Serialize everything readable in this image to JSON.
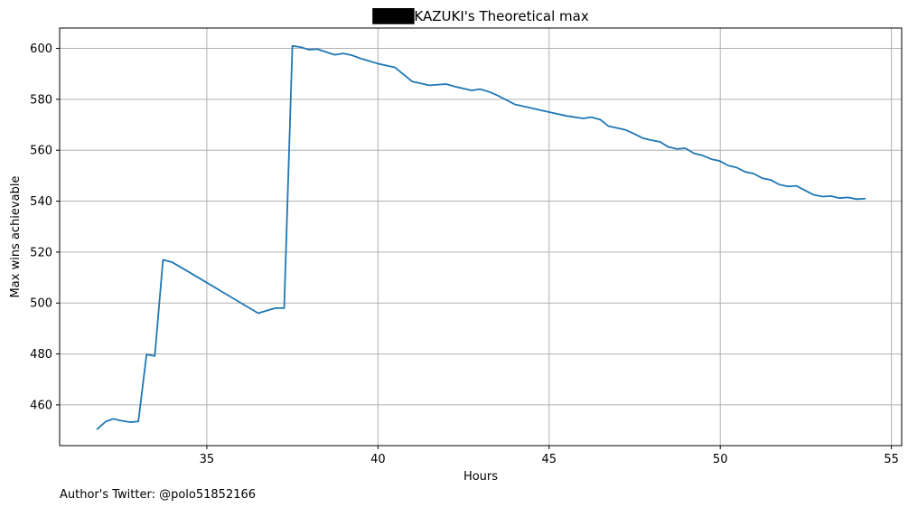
{
  "chart_data": {
    "type": "line",
    "title": "████KAZUKI's Theoretical max",
    "xlabel": "Hours",
    "ylabel": "Max wins achievable",
    "xlim": [
      30.7,
      55.3
    ],
    "ylim": [
      444,
      608
    ],
    "x_ticks": [
      35,
      40,
      45,
      50,
      55
    ],
    "y_ticks": [
      460,
      480,
      500,
      520,
      540,
      560,
      580,
      600
    ],
    "x_tick_labels": [
      "35",
      "40",
      "45",
      "50",
      "55"
    ],
    "y_tick_labels": [
      "460",
      "480",
      "500",
      "520",
      "540",
      "560",
      "580",
      "600"
    ],
    "grid": true,
    "series": [
      {
        "color": "#1f77b4",
        "x": [
          31.8,
          32.05,
          32.27,
          32.5,
          32.77,
          33.0,
          33.24,
          33.48,
          33.72,
          33.99,
          34.5,
          35.0,
          35.5,
          36.0,
          36.5,
          37.0,
          37.26,
          37.5,
          37.74,
          37.98,
          38.23,
          38.5,
          38.74,
          38.99,
          39.24,
          39.5,
          40.0,
          40.5,
          41.0,
          41.5,
          41.99,
          42.25,
          42.74,
          42.98,
          43.24,
          43.5,
          44.0,
          44.5,
          45.0,
          45.5,
          46.0,
          46.23,
          46.5,
          46.73,
          46.96,
          47.23,
          47.48,
          47.73,
          47.97,
          48.24,
          48.48,
          48.73,
          48.98,
          49.23,
          49.47,
          49.74,
          49.98,
          50.23,
          50.48,
          50.73,
          50.98,
          51.23,
          51.48,
          51.73,
          51.98,
          52.23,
          52.48,
          52.73,
          52.98,
          53.23,
          53.48,
          53.73,
          53.98,
          54.23
        ],
        "y": [
          450.5,
          453.5,
          454.5,
          453.8,
          453.2,
          453.5,
          479.8,
          479.2,
          517.0,
          516.0,
          512.0,
          508.0,
          504.0,
          500.0,
          496.0,
          498.0,
          498.0,
          601.0,
          600.5,
          599.5,
          599.7,
          598.5,
          597.5,
          598.0,
          597.3,
          596.0,
          594.0,
          592.5,
          587.0,
          585.5,
          586.0,
          585.0,
          583.5,
          584.0,
          583.0,
          581.5,
          578.0,
          576.5,
          575.0,
          573.5,
          572.5,
          573.0,
          572.0,
          569.5,
          568.8,
          568.0,
          566.5,
          564.8,
          564.0,
          563.3,
          561.3,
          560.5,
          560.8,
          558.8,
          558.0,
          556.5,
          555.8,
          554.0,
          553.2,
          551.5,
          550.8,
          549.0,
          548.3,
          546.5,
          545.8,
          546.0,
          544.2,
          542.5,
          541.8,
          542.0,
          541.2,
          541.5,
          540.8,
          541.0
        ]
      }
    ]
  },
  "footer": {
    "note": "Author's Twitter: @polo51852166"
  }
}
